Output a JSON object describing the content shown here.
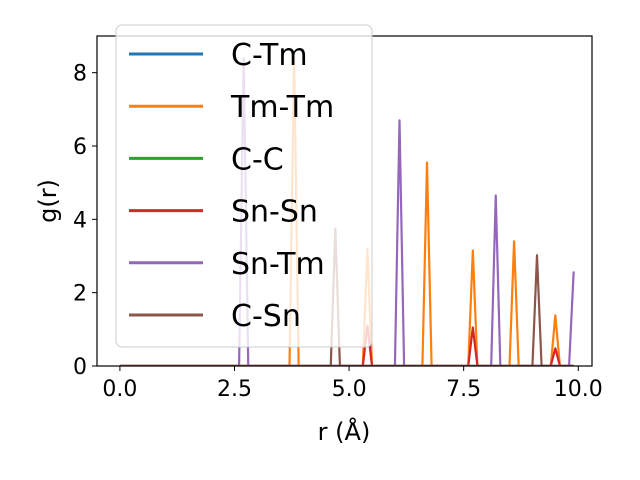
{
  "chart_data": {
    "type": "line",
    "xlabel": "r (Å)",
    "ylabel": "g(r)",
    "xlim": [
      -0.5,
      10.3
    ],
    "ylim": [
      0,
      9
    ],
    "xticks": [
      "0.0",
      "2.5",
      "5.0",
      "7.5",
      "10.0"
    ],
    "yticks": [
      "0",
      "2",
      "4",
      "6",
      "8"
    ],
    "legend_position": "top-left",
    "series": [
      {
        "name": "C-Tm",
        "color": "#1f77b4",
        "x": [
          0.0,
          9.9
        ],
        "y": [
          0,
          0
        ]
      },
      {
        "name": "Tm-Tm",
        "color": "#ff7f0e",
        "x": [
          0.0,
          3.7,
          3.8,
          3.9,
          5.3,
          5.4,
          5.5,
          6.6,
          6.7,
          6.8,
          7.6,
          7.7,
          7.8,
          8.5,
          8.6,
          8.7,
          9.4,
          9.5,
          9.6,
          9.9
        ],
        "y": [
          0,
          0,
          8.5,
          0,
          0,
          3.2,
          0,
          0,
          5.55,
          0,
          0,
          3.15,
          0,
          0,
          3.4,
          0,
          0,
          1.38,
          0,
          0
        ]
      },
      {
        "name": "C-C",
        "color": "#2ca02c",
        "x": [
          0.0,
          9.9
        ],
        "y": [
          0,
          0
        ]
      },
      {
        "name": "Sn-Sn",
        "color": "#d62728",
        "x": [
          0.0,
          5.3,
          5.4,
          5.5,
          7.6,
          7.7,
          7.8,
          9.4,
          9.5,
          9.6,
          9.9
        ],
        "y": [
          0,
          0,
          1.1,
          0,
          0,
          1.05,
          0,
          0,
          0.48,
          0,
          0
        ]
      },
      {
        "name": "Sn-Tm",
        "color": "#9467bd",
        "x": [
          0.0,
          2.6,
          2.7,
          2.8,
          6.0,
          6.1,
          6.2,
          8.1,
          8.2,
          8.3,
          9.8,
          9.9
        ],
        "y": [
          0,
          0,
          8.4,
          0,
          0,
          6.7,
          0,
          0,
          4.65,
          0,
          0,
          2.58
        ]
      },
      {
        "name": "C-Sn",
        "color": "#8c564b",
        "x": [
          0.0,
          4.6,
          4.7,
          4.8,
          9.0,
          9.1,
          9.2,
          9.9
        ],
        "y": [
          0,
          0,
          3.75,
          0,
          0,
          3.02,
          0,
          0
        ]
      }
    ]
  }
}
